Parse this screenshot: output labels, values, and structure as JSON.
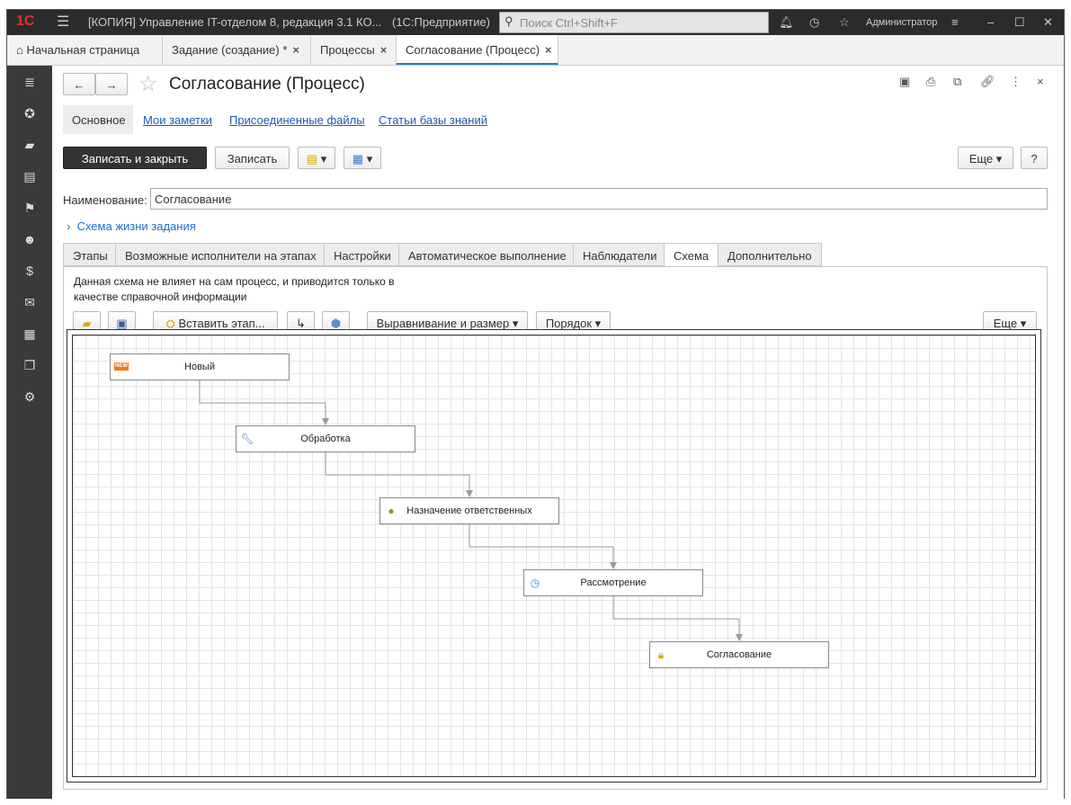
{
  "titlebar": {
    "logo": "1С",
    "title": "[КОПИЯ] Управление IT-отделом 8, редакция 3.1 КО...",
    "app": "(1С:Предприятие)",
    "search_placeholder": "Поиск Ctrl+Shift+F",
    "user": "Администратор"
  },
  "tabs": [
    {
      "label": "Начальная страница"
    },
    {
      "label": "Задание (создание) *"
    },
    {
      "label": "Процессы"
    },
    {
      "label": "Согласование (Процесс)",
      "active": true
    }
  ],
  "sidebar": {
    "icons": [
      "menu-icon",
      "star-icon",
      "truck-icon",
      "printer-icon",
      "flag-icon",
      "users-icon",
      "money-icon",
      "mail-icon",
      "calendar-icon",
      "documents-icon",
      "gear-icon"
    ]
  },
  "form": {
    "title": "Согласование (Процесс)",
    "nav": [
      "Основное",
      "Мои заметки",
      "Присоединенные файлы",
      "Статьи базы знаний"
    ],
    "save_close": "Записать и закрыть",
    "save": "Записать",
    "more": "Еще",
    "help": "?",
    "name_label": "Наименование:",
    "name_value": "Согласование",
    "lifecycle": "Схема жизни задания",
    "inner_tabs": [
      "Этапы",
      "Возможные исполнители на этапах",
      "Настройки",
      "Автоматическое выполнение",
      "Наблюдатели",
      "Схема",
      "Дополнительно"
    ],
    "active_inner_tab": "Схема",
    "note": "Данная схема не влияет на сам процесс, и приводится только в",
    "note2": "качестве справочной информации",
    "insert_stage": "Вставить этап...",
    "align": "Выравнивание и размер",
    "order": "Порядок",
    "more2": "Еще"
  },
  "diagram": {
    "nodes": [
      {
        "label": "Новый",
        "icon": "new-badge-icon"
      },
      {
        "label": "Обработка",
        "icon": "wrench-icon"
      },
      {
        "label": "Назначение ответственных",
        "icon": "user-icon"
      },
      {
        "label": "Рассмотрение",
        "icon": "clock-icon"
      },
      {
        "label": "Согласование",
        "icon": "lock-icon"
      }
    ]
  },
  "colors": {
    "accent": "#1e7bd0",
    "titlebar": "#2b2b2b",
    "logo": "#d0201b"
  }
}
